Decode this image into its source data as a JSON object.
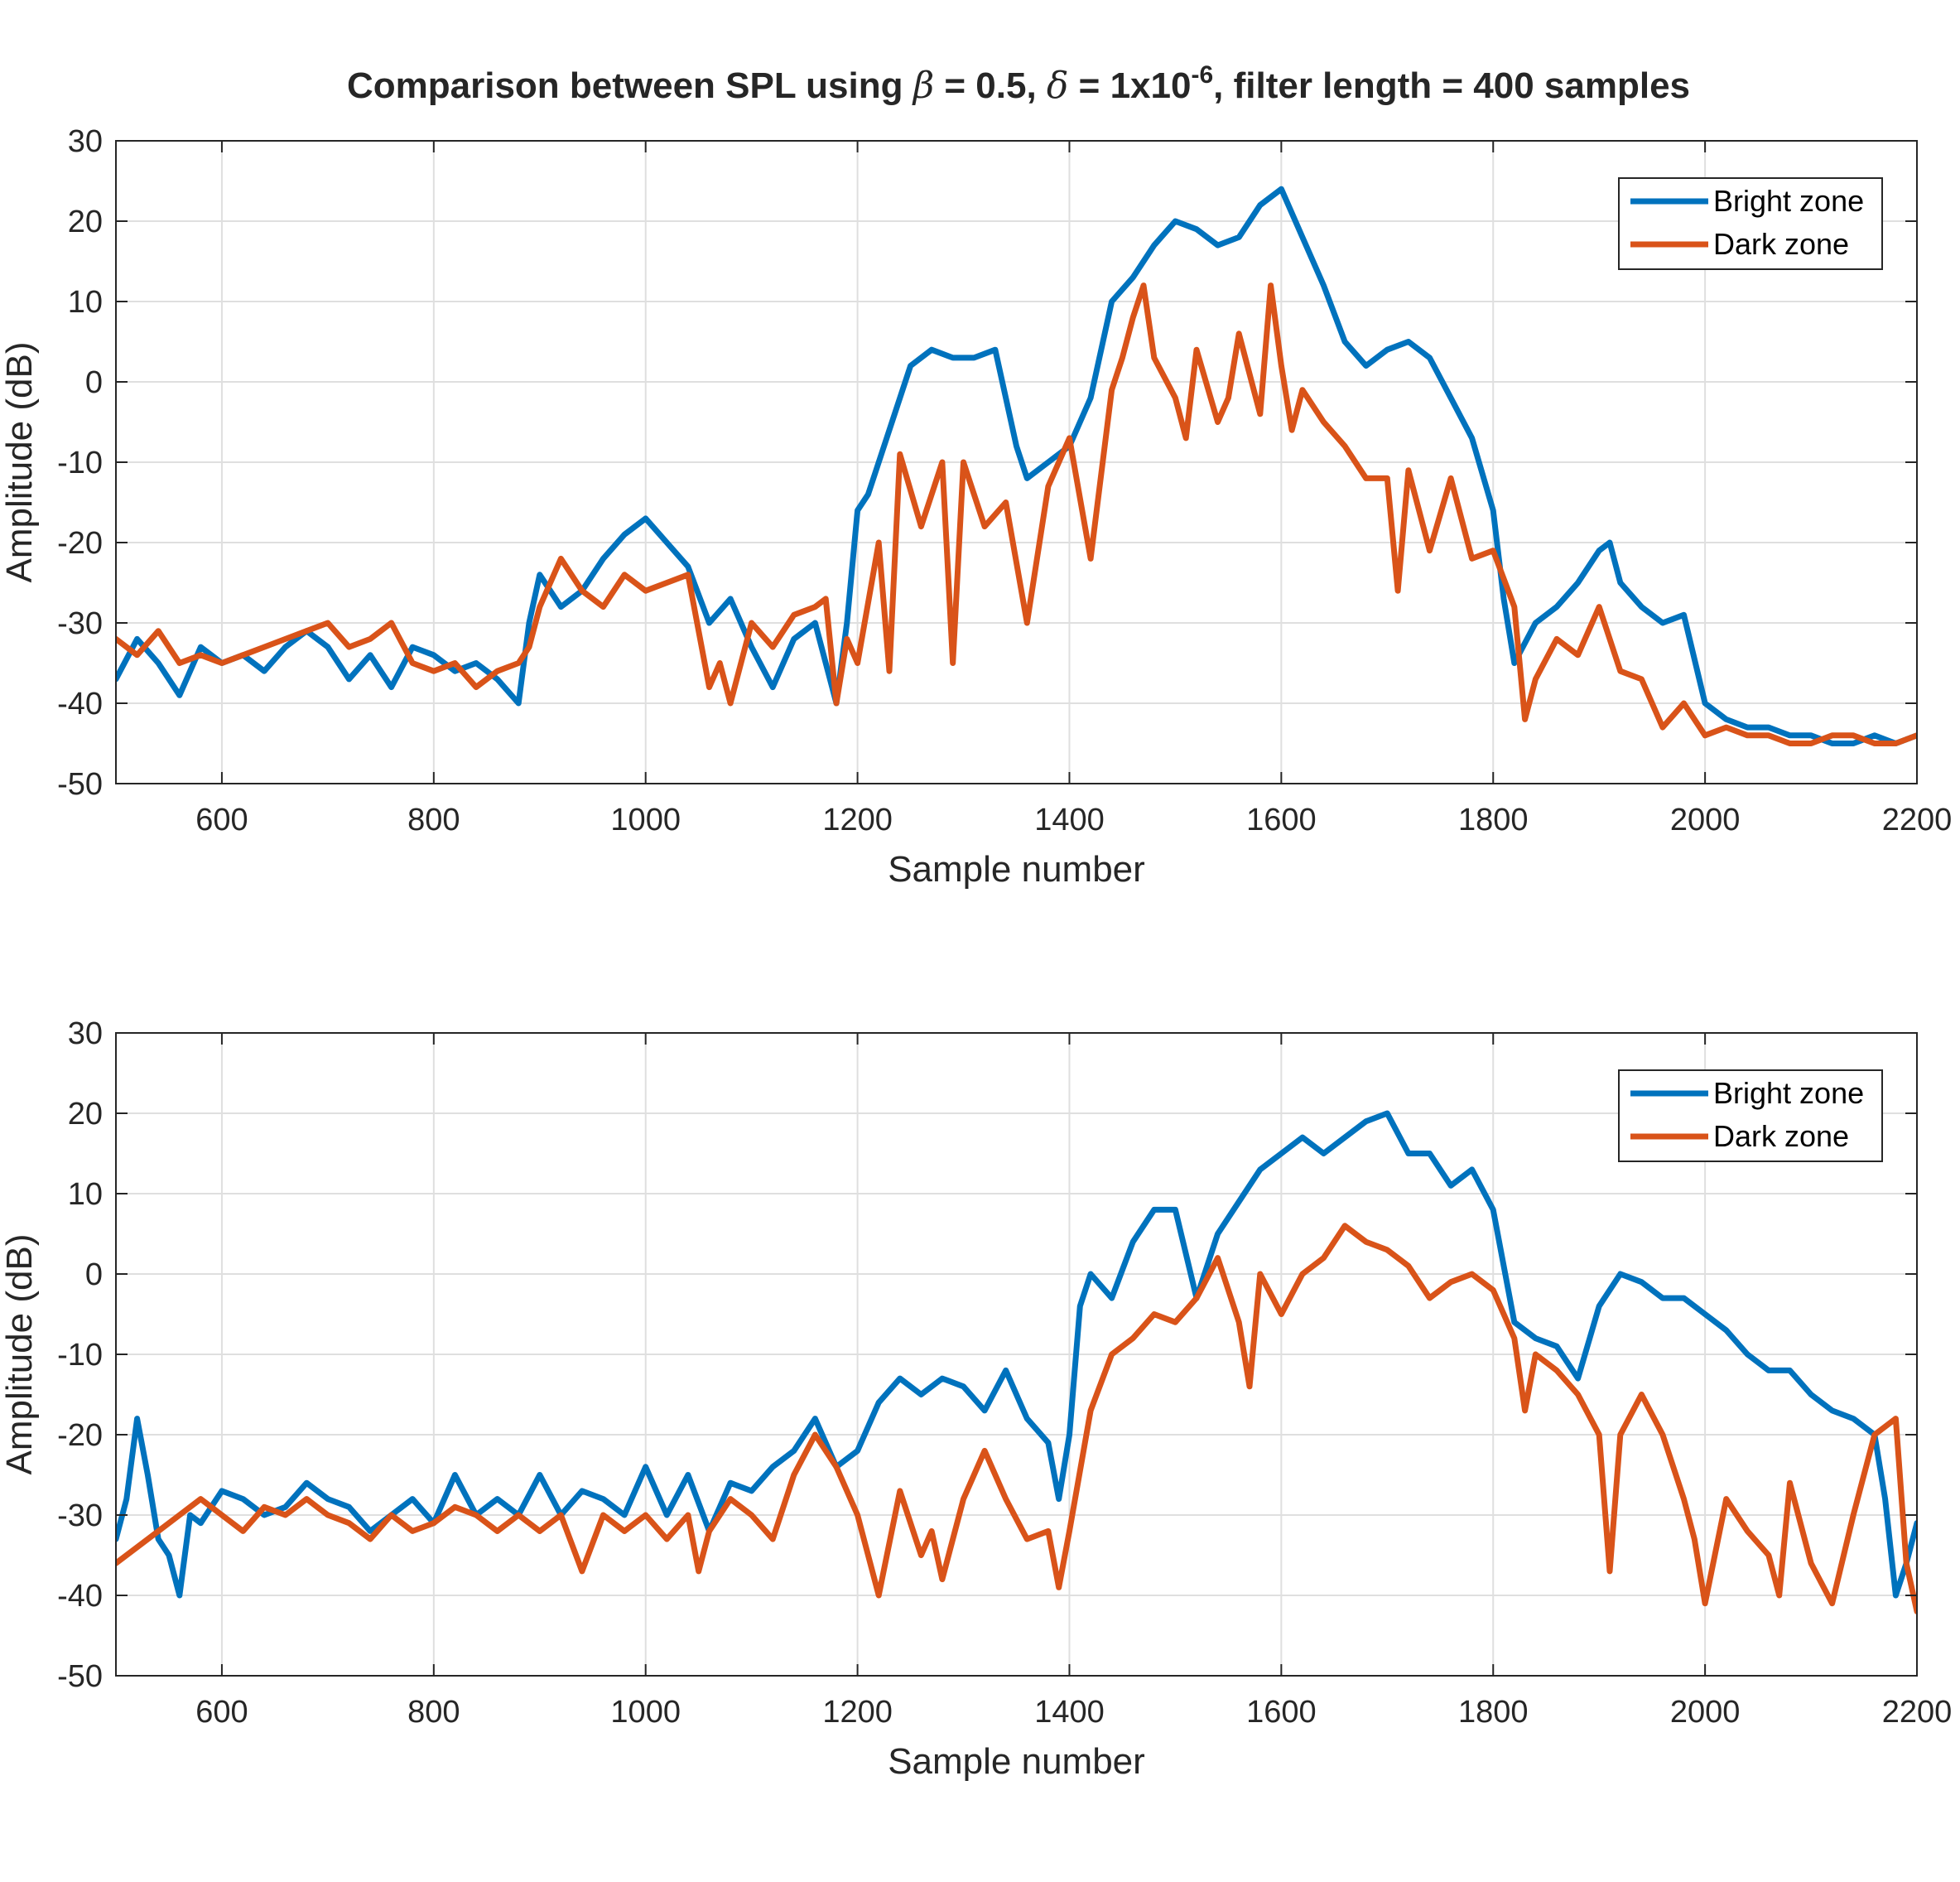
{
  "title": {
    "prefix": "Comparison between SPL using ",
    "beta_symbol": "β",
    "beta_part": " = 0.5, ",
    "delta_symbol": "δ",
    "delta_part": " = 1x10",
    "exponent": "-6",
    "suffix": ", filter length = 400 samples"
  },
  "colors": {
    "bright_zone": "#0072BD",
    "dark_zone": "#D95319",
    "grid": "#dfdfdf",
    "axis": "#262626"
  },
  "chart_data": [
    {
      "type": "line",
      "xlabel": "Sample number",
      "ylabel": "Amplitude (dB)",
      "xlim": [
        500,
        2200
      ],
      "ylim": [
        -50,
        30
      ],
      "xticks": [
        600,
        800,
        1000,
        1200,
        1400,
        1600,
        1800,
        2000,
        2200
      ],
      "yticks": [
        -50,
        -40,
        -30,
        -20,
        -10,
        0,
        10,
        20,
        30
      ],
      "grid": true,
      "legend_position": "top-right",
      "series": [
        {
          "name": "Bright zone",
          "color": "#0072BD",
          "x": [
            500,
            520,
            540,
            560,
            580,
            600,
            620,
            640,
            660,
            680,
            700,
            720,
            740,
            760,
            780,
            800,
            820,
            840,
            860,
            880,
            890,
            900,
            920,
            940,
            960,
            980,
            1000,
            1020,
            1040,
            1060,
            1080,
            1100,
            1120,
            1140,
            1160,
            1180,
            1190,
            1200,
            1210,
            1230,
            1250,
            1270,
            1290,
            1310,
            1330,
            1350,
            1360,
            1380,
            1400,
            1420,
            1440,
            1460,
            1480,
            1500,
            1520,
            1540,
            1560,
            1580,
            1600,
            1620,
            1640,
            1660,
            1680,
            1700,
            1720,
            1740,
            1760,
            1780,
            1800,
            1810,
            1820,
            1840,
            1860,
            1880,
            1900,
            1910,
            1920,
            1940,
            1960,
            1980,
            2000,
            2020,
            2040,
            2060,
            2080,
            2100,
            2120,
            2140,
            2160,
            2180,
            2200
          ],
          "y": [
            -37,
            -32,
            -35,
            -39,
            -33,
            -35,
            -34,
            -36,
            -33,
            -31,
            -33,
            -37,
            -34,
            -38,
            -33,
            -34,
            -36,
            -35,
            -37,
            -40,
            -30,
            -24,
            -28,
            -26,
            -22,
            -19,
            -17,
            -20,
            -23,
            -30,
            -27,
            -33,
            -38,
            -32,
            -30,
            -40,
            -30,
            -16,
            -14,
            -6,
            2,
            4,
            3,
            3,
            4,
            -8,
            -12,
            -10,
            -8,
            -2,
            10,
            13,
            17,
            20,
            19,
            17,
            18,
            22,
            24,
            18,
            12,
            5,
            2,
            4,
            5,
            3,
            -2,
            -7,
            -16,
            -27,
            -35,
            -30,
            -28,
            -25,
            -21,
            -20,
            -25,
            -28,
            -30,
            -29,
            -40,
            -42,
            -43,
            -43,
            -44,
            -44,
            -45,
            -45,
            -44,
            -45,
            -44
          ]
        },
        {
          "name": "Dark zone",
          "color": "#D95319",
          "x": [
            500,
            520,
            540,
            560,
            580,
            600,
            620,
            640,
            660,
            680,
            700,
            720,
            740,
            760,
            780,
            800,
            820,
            840,
            860,
            880,
            890,
            900,
            920,
            940,
            960,
            980,
            1000,
            1020,
            1040,
            1060,
            1070,
            1080,
            1100,
            1120,
            1140,
            1160,
            1170,
            1180,
            1190,
            1200,
            1220,
            1230,
            1240,
            1260,
            1280,
            1290,
            1300,
            1320,
            1340,
            1360,
            1380,
            1400,
            1420,
            1440,
            1450,
            1460,
            1470,
            1480,
            1500,
            1510,
            1520,
            1540,
            1550,
            1560,
            1580,
            1590,
            1600,
            1610,
            1620,
            1640,
            1660,
            1680,
            1700,
            1710,
            1720,
            1740,
            1760,
            1780,
            1800,
            1820,
            1830,
            1840,
            1860,
            1880,
            1900,
            1920,
            1940,
            1960,
            1980,
            2000,
            2020,
            2040,
            2060,
            2080,
            2100,
            2120,
            2140,
            2160,
            2180,
            2200
          ],
          "y": [
            -32,
            -34,
            -31,
            -35,
            -34,
            -35,
            -34,
            -33,
            -32,
            -31,
            -30,
            -33,
            -32,
            -30,
            -35,
            -36,
            -35,
            -38,
            -36,
            -35,
            -33,
            -28,
            -22,
            -26,
            -28,
            -24,
            -26,
            -25,
            -24,
            -38,
            -35,
            -40,
            -30,
            -33,
            -29,
            -28,
            -27,
            -40,
            -32,
            -35,
            -20,
            -36,
            -9,
            -18,
            -10,
            -35,
            -10,
            -18,
            -15,
            -30,
            -13,
            -7,
            -22,
            -1,
            3,
            8,
            12,
            3,
            -2,
            -7,
            4,
            -5,
            -2,
            6,
            -4,
            12,
            2,
            -6,
            -1,
            -5,
            -8,
            -12,
            -12,
            -26,
            -11,
            -21,
            -12,
            -22,
            -21,
            -28,
            -42,
            -37,
            -32,
            -34,
            -28,
            -36,
            -37,
            -43,
            -40,
            -44,
            -43,
            -44,
            -44,
            -45,
            -45,
            -44,
            -44,
            -45,
            -45,
            -44
          ]
        }
      ]
    },
    {
      "type": "line",
      "xlabel": "Sample number",
      "ylabel": "Amplitude (dB)",
      "xlim": [
        500,
        2200
      ],
      "ylim": [
        -50,
        30
      ],
      "xticks": [
        600,
        800,
        1000,
        1200,
        1400,
        1600,
        1800,
        2000,
        2200
      ],
      "yticks": [
        -50,
        -40,
        -30,
        -20,
        -10,
        0,
        10,
        20,
        30
      ],
      "grid": true,
      "legend_position": "top-right",
      "series": [
        {
          "name": "Bright zone",
          "color": "#0072BD",
          "x": [
            500,
            510,
            520,
            530,
            540,
            550,
            560,
            570,
            580,
            600,
            620,
            640,
            660,
            680,
            700,
            720,
            740,
            760,
            780,
            800,
            820,
            840,
            860,
            880,
            900,
            920,
            940,
            960,
            980,
            1000,
            1020,
            1040,
            1060,
            1080,
            1100,
            1120,
            1140,
            1160,
            1180,
            1200,
            1220,
            1240,
            1260,
            1280,
            1300,
            1320,
            1340,
            1360,
            1380,
            1390,
            1400,
            1410,
            1420,
            1440,
            1460,
            1480,
            1500,
            1520,
            1540,
            1560,
            1580,
            1600,
            1620,
            1640,
            1660,
            1680,
            1700,
            1720,
            1740,
            1760,
            1780,
            1800,
            1820,
            1840,
            1860,
            1880,
            1900,
            1920,
            1940,
            1960,
            1980,
            2000,
            2020,
            2040,
            2060,
            2080,
            2100,
            2120,
            2140,
            2160,
            2170,
            2180,
            2190,
            2200
          ],
          "y": [
            -33,
            -28,
            -18,
            -25,
            -33,
            -35,
            -40,
            -30,
            -31,
            -27,
            -28,
            -30,
            -29,
            -26,
            -28,
            -29,
            -32,
            -30,
            -28,
            -31,
            -25,
            -30,
            -28,
            -30,
            -25,
            -30,
            -27,
            -28,
            -30,
            -24,
            -30,
            -25,
            -32,
            -26,
            -27,
            -24,
            -22,
            -18,
            -24,
            -22,
            -16,
            -13,
            -15,
            -13,
            -14,
            -17,
            -12,
            -18,
            -21,
            -28,
            -20,
            -4,
            0,
            -3,
            4,
            8,
            8,
            -3,
            5,
            9,
            13,
            15,
            17,
            15,
            17,
            19,
            20,
            15,
            15,
            11,
            13,
            8,
            -6,
            -8,
            -9,
            -13,
            -4,
            0,
            -1,
            -3,
            -3,
            -5,
            -7,
            -10,
            -12,
            -12,
            -15,
            -17,
            -18,
            -20,
            -28,
            -40,
            -36,
            -31
          ]
        },
        {
          "name": "Dark zone",
          "color": "#D95319",
          "x": [
            500,
            520,
            540,
            560,
            580,
            600,
            620,
            640,
            660,
            680,
            700,
            720,
            740,
            760,
            780,
            800,
            820,
            840,
            860,
            880,
            900,
            920,
            940,
            960,
            980,
            1000,
            1020,
            1040,
            1050,
            1060,
            1080,
            1100,
            1120,
            1140,
            1160,
            1180,
            1200,
            1210,
            1220,
            1240,
            1260,
            1270,
            1280,
            1300,
            1320,
            1340,
            1360,
            1380,
            1390,
            1400,
            1420,
            1440,
            1460,
            1480,
            1500,
            1520,
            1540,
            1560,
            1570,
            1580,
            1600,
            1620,
            1640,
            1660,
            1680,
            1700,
            1720,
            1740,
            1760,
            1780,
            1800,
            1820,
            1830,
            1840,
            1860,
            1880,
            1900,
            1910,
            1920,
            1940,
            1960,
            1980,
            1990,
            2000,
            2020,
            2040,
            2060,
            2070,
            2080,
            2100,
            2120,
            2140,
            2160,
            2180,
            2190,
            2200
          ],
          "y": [
            -36,
            -34,
            -32,
            -30,
            -28,
            -30,
            -32,
            -29,
            -30,
            -28,
            -30,
            -31,
            -33,
            -30,
            -32,
            -31,
            -29,
            -30,
            -32,
            -30,
            -32,
            -30,
            -37,
            -30,
            -32,
            -30,
            -33,
            -30,
            -37,
            -32,
            -28,
            -30,
            -33,
            -25,
            -20,
            -24,
            -30,
            -35,
            -40,
            -27,
            -35,
            -32,
            -38,
            -28,
            -22,
            -28,
            -33,
            -32,
            -39,
            -32,
            -17,
            -10,
            -8,
            -5,
            -6,
            -3,
            2,
            -6,
            -14,
            0,
            -5,
            0,
            2,
            6,
            4,
            3,
            1,
            -3,
            -1,
            0,
            -2,
            -8,
            -17,
            -10,
            -12,
            -15,
            -20,
            -37,
            -20,
            -15,
            -20,
            -28,
            -33,
            -41,
            -28,
            -32,
            -35,
            -40,
            -26,
            -36,
            -41,
            -30,
            -20,
            -18,
            -36,
            -42
          ]
        }
      ]
    }
  ]
}
